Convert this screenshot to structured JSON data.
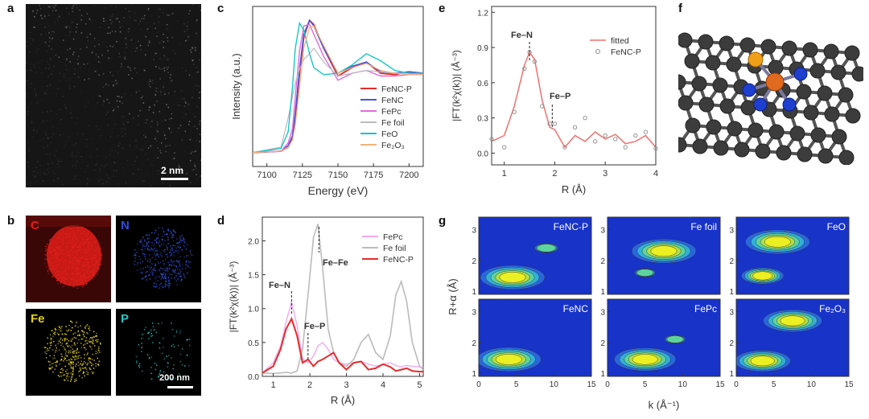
{
  "panels": {
    "a": {
      "letter": "a",
      "scale_bar": "2 nm"
    },
    "b": {
      "letter": "b",
      "maps": [
        {
          "label": "C",
          "color": "#e0201c"
        },
        {
          "label": "N",
          "color": "#2e4fd8"
        },
        {
          "label": "Fe",
          "color": "#e6d21a"
        },
        {
          "label": "P",
          "color": "#27c4c4"
        }
      ],
      "scale_bar": "200 nm"
    },
    "c": {
      "letter": "c",
      "xlabel": "Energy (eV)",
      "ylabel": "Intensity (a.u.)",
      "xticks": [
        "7100",
        "7125",
        "7150",
        "7175",
        "7200"
      ],
      "legend": [
        {
          "name": "FeNC-P",
          "color": "#e52c2c"
        },
        {
          "name": "FeNC",
          "color": "#4a55d6"
        },
        {
          "name": "FePc",
          "color": "#e06ae0"
        },
        {
          "name": "Fe foil",
          "color": "#bbbbbb"
        },
        {
          "name": "FeO",
          "color": "#17c6c8"
        },
        {
          "name": "Fe₂O₃",
          "color": "#f4b27a"
        }
      ]
    },
    "d": {
      "letter": "d",
      "xlabel": "R (Å)",
      "ylabel": "|FT(k²χ(k))| (Å⁻³)",
      "xticks": [
        "1",
        "2",
        "3",
        "4",
        "5"
      ],
      "yticks": [
        "0.0",
        "0.5",
        "1.0",
        "1.5",
        "2.0"
      ],
      "annotations": [
        "Fe–N",
        "Fe–P",
        "Fe–Fe"
      ],
      "legend": [
        {
          "name": "FePc",
          "color": "#f2a9f2"
        },
        {
          "name": "Fe foil",
          "color": "#bbbbbb"
        },
        {
          "name": "FeNC-P",
          "color": "#e52c2c"
        }
      ]
    },
    "e": {
      "letter": "e",
      "xlabel": "R (Å)",
      "ylabel": "|FT(k²χ(k))| (Å⁻³)",
      "xticks": [
        "1",
        "2",
        "3",
        "4"
      ],
      "yticks": [
        "0.0",
        "0.3",
        "0.6",
        "0.9",
        "1.2"
      ],
      "annotations": [
        "Fe–N",
        "Fe–P"
      ],
      "legend": [
        {
          "name": "fitted",
          "color": "#f07070"
        },
        {
          "name": "FeNC-P",
          "color": "#888888"
        }
      ]
    },
    "f": {
      "letter": "f"
    },
    "g": {
      "letter": "g",
      "xlabel": "k (Å⁻¹)",
      "ylabel": "R+α (Å)",
      "xticks": [
        "0",
        "5",
        "10",
        "15"
      ],
      "yticks": [
        "1",
        "2",
        "3"
      ],
      "maps": [
        "FeNC-P",
        "Fe foil",
        "FeO",
        "FeNC",
        "FePc",
        "Fe₂O₃"
      ]
    }
  },
  "chart_data": [
    {
      "id": "c",
      "type": "line",
      "title": "",
      "xlabel": "Energy (eV)",
      "ylabel": "Intensity (a.u.)",
      "xlim": [
        7090,
        7210
      ],
      "x": [
        7090,
        7110,
        7115,
        7118,
        7120,
        7123,
        7126,
        7130,
        7133,
        7140,
        7150,
        7160,
        7170,
        7180,
        7190,
        7200,
        7210
      ],
      "series": [
        {
          "name": "FeNC-P",
          "values": [
            0.05,
            0.06,
            0.09,
            0.15,
            0.3,
            0.62,
            0.88,
            1.0,
            0.97,
            0.8,
            0.6,
            0.66,
            0.7,
            0.62,
            0.61,
            0.63,
            0.62
          ]
        },
        {
          "name": "FeNC",
          "values": [
            0.05,
            0.06,
            0.1,
            0.17,
            0.33,
            0.65,
            0.9,
            1.0,
            0.96,
            0.8,
            0.62,
            0.67,
            0.7,
            0.63,
            0.62,
            0.63,
            0.62
          ]
        },
        {
          "name": "FePc",
          "values": [
            0.05,
            0.06,
            0.12,
            0.22,
            0.45,
            0.78,
            0.96,
            0.97,
            0.9,
            0.74,
            0.57,
            0.62,
            0.64,
            0.6,
            0.6,
            0.61,
            0.61
          ]
        },
        {
          "name": "Fe foil",
          "values": [
            0.05,
            0.09,
            0.3,
            0.45,
            0.55,
            0.65,
            0.72,
            0.76,
            0.8,
            0.7,
            0.6,
            0.62,
            0.64,
            0.63,
            0.62,
            0.62,
            0.62
          ]
        },
        {
          "name": "FeO",
          "values": [
            0.05,
            0.08,
            0.2,
            0.52,
            0.8,
            0.98,
            0.93,
            0.76,
            0.66,
            0.61,
            0.62,
            0.68,
            0.76,
            0.71,
            0.64,
            0.62,
            0.62
          ]
        },
        {
          "name": "Fe₂O₃",
          "values": [
            0.05,
            0.06,
            0.09,
            0.14,
            0.25,
            0.52,
            0.8,
            0.95,
            0.96,
            0.82,
            0.62,
            0.66,
            0.69,
            0.64,
            0.62,
            0.61,
            0.61
          ]
        }
      ]
    },
    {
      "id": "d",
      "type": "line",
      "title": "",
      "xlabel": "R (Å)",
      "ylabel": "|FT(k²χ(k))| (Å⁻³)",
      "xlim": [
        0.7,
        5.1
      ],
      "ylim": [
        0,
        2.35
      ],
      "x": [
        0.7,
        1.0,
        1.2,
        1.35,
        1.5,
        1.65,
        1.8,
        1.95,
        2.1,
        2.22,
        2.35,
        2.5,
        2.65,
        2.8,
        3.0,
        3.2,
        3.4,
        3.6,
        3.8,
        4.0,
        4.2,
        4.35,
        4.5,
        4.65,
        4.8,
        5.0,
        5.1
      ],
      "series": [
        {
          "name": "FePc",
          "values": [
            0.05,
            0.2,
            0.45,
            0.8,
            1.1,
            0.75,
            0.25,
            0.2,
            0.3,
            0.45,
            0.5,
            0.4,
            0.25,
            0.2,
            0.18,
            0.2,
            0.22,
            0.18,
            0.15,
            0.18,
            0.2,
            0.16,
            0.14,
            0.16,
            0.15,
            0.14,
            0.14
          ]
        },
        {
          "name": "Fe foil",
          "values": [
            0.05,
            0.04,
            0.05,
            0.06,
            0.05,
            0.08,
            0.4,
            1.2,
            2.05,
            2.25,
            1.6,
            0.7,
            0.35,
            0.2,
            0.15,
            0.25,
            0.5,
            0.62,
            0.35,
            0.25,
            0.6,
            1.2,
            1.4,
            1.1,
            0.5,
            0.15,
            0.1
          ]
        },
        {
          "name": "FeNC-P",
          "values": [
            0.05,
            0.15,
            0.4,
            0.7,
            0.85,
            0.6,
            0.2,
            0.25,
            0.15,
            0.22,
            0.25,
            0.3,
            0.35,
            0.2,
            0.1,
            0.2,
            0.22,
            0.1,
            0.12,
            0.18,
            0.14,
            0.08,
            0.1,
            0.12,
            0.08,
            0.07,
            0.07
          ]
        }
      ]
    },
    {
      "id": "e",
      "type": "line",
      "title": "",
      "xlabel": "R (Å)",
      "ylabel": "|FT(k²χ(k))| (Å⁻³)",
      "xlim": [
        0.75,
        4.0
      ],
      "ylim": [
        -0.1,
        1.25
      ],
      "x": [
        0.75,
        1.0,
        1.2,
        1.4,
        1.5,
        1.6,
        1.75,
        1.9,
        2.0,
        2.2,
        2.4,
        2.6,
        2.8,
        3.0,
        3.2,
        3.4,
        3.6,
        3.8,
        4.0
      ],
      "series": [
        {
          "name": "fitted",
          "values": [
            0.1,
            0.15,
            0.4,
            0.75,
            0.86,
            0.8,
            0.45,
            0.22,
            0.2,
            0.05,
            0.15,
            0.1,
            0.18,
            0.12,
            0.16,
            0.08,
            0.1,
            0.15,
            0.05
          ]
        },
        {
          "name": "FeNC-P",
          "values": [
            0.12,
            0.05,
            0.35,
            0.72,
            0.86,
            0.78,
            0.4,
            0.25,
            0.25,
            0.05,
            0.22,
            0.3,
            0.1,
            0.15,
            0.12,
            0.05,
            0.15,
            0.18,
            0.04
          ]
        }
      ]
    },
    {
      "id": "g",
      "type": "heatmap",
      "title": "",
      "xlabel": "k (Å⁻¹)",
      "ylabel": "R+α (Å)",
      "xlim": [
        0,
        15
      ],
      "ylim": [
        0.9,
        3.4
      ],
      "maps": [
        {
          "name": "FeNC-P",
          "peaks": [
            {
              "k": 4.5,
              "r": 1.45,
              "intensity": 1.0
            },
            {
              "k": 9,
              "r": 2.4,
              "intensity": 0.25
            }
          ]
        },
        {
          "name": "Fe foil",
          "peaks": [
            {
              "k": 7.5,
              "r": 2.3,
              "intensity": 1.0
            },
            {
              "k": 5,
              "r": 1.6,
              "intensity": 0.2
            }
          ]
        },
        {
          "name": "FeO",
          "peaks": [
            {
              "k": 5.5,
              "r": 2.6,
              "intensity": 1.0
            },
            {
              "k": 3.5,
              "r": 1.5,
              "intensity": 0.6
            }
          ]
        },
        {
          "name": "FeNC",
          "peaks": [
            {
              "k": 4.0,
              "r": 1.45,
              "intensity": 1.0
            }
          ]
        },
        {
          "name": "FePc",
          "peaks": [
            {
              "k": 5.0,
              "r": 1.45,
              "intensity": 0.95
            },
            {
              "k": 9,
              "r": 2.1,
              "intensity": 0.2
            }
          ]
        },
        {
          "name": "Fe₂O₃",
          "peaks": [
            {
              "k": 7.5,
              "r": 2.7,
              "intensity": 0.9
            },
            {
              "k": 3.5,
              "r": 1.4,
              "intensity": 0.85
            }
          ]
        }
      ]
    }
  ]
}
